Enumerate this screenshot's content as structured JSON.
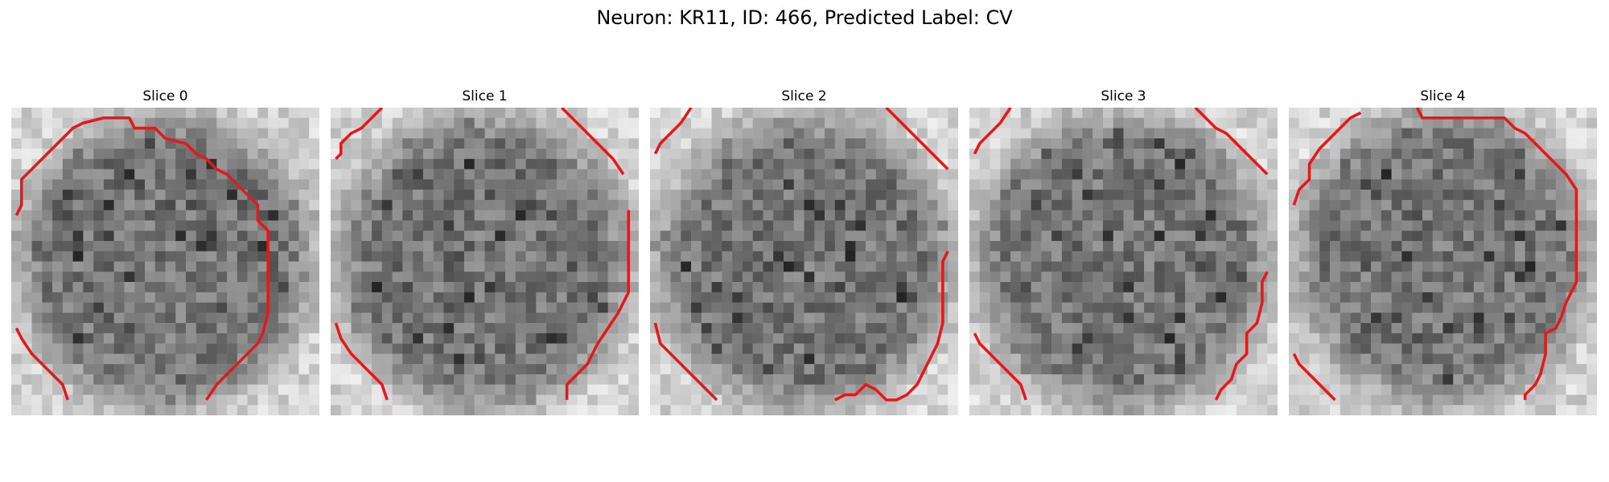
{
  "figure": {
    "title": "Neuron: KR11, ID: 466, Predicted Label: CV",
    "contour_color": "#e31a1c",
    "colormap": "gray",
    "grid": "30x30"
  },
  "slices": [
    {
      "label": "Slice 0"
    },
    {
      "label": "Slice 1"
    },
    {
      "label": "Slice 2"
    },
    {
      "label": "Slice 3"
    },
    {
      "label": "Slice 4"
    }
  ]
}
